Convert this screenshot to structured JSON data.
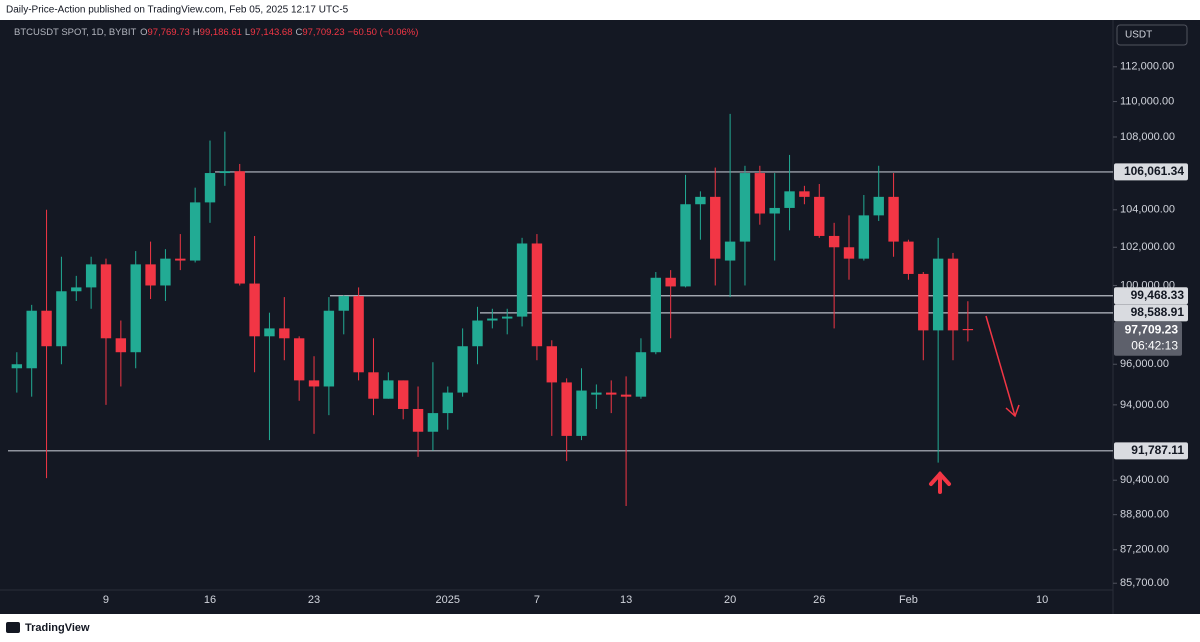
{
  "header": {
    "publisher": "Daily-Price-Action published on TradingView.com, Feb 05, 2025 12:17 UTC-5",
    "symbol": "BTCUSDT SPOT, 1D, BYBIT",
    "ohlc": [
      {
        "key": "O",
        "value": "97,769.73"
      },
      {
        "key": "H",
        "value": "99,186.61"
      },
      {
        "key": "L",
        "value": "97,143.68"
      },
      {
        "key": "C",
        "value": "97,709.23"
      }
    ],
    "change": "−60.50 (−0.06%)",
    "currency": "USDT"
  },
  "footer": {
    "brand": "TradingView"
  },
  "chart_data": {
    "type": "candlestick",
    "log_scale": true,
    "grid": false,
    "up_color": "#22ab94",
    "down_color": "#f23645",
    "categories": [
      null,
      null,
      null,
      null,
      null,
      null,
      "9",
      null,
      null,
      null,
      null,
      null,
      null,
      "16",
      null,
      null,
      null,
      null,
      null,
      null,
      "23",
      null,
      null,
      null,
      null,
      null,
      null,
      null,
      null,
      "2025",
      null,
      null,
      null,
      null,
      null,
      "7",
      null,
      null,
      null,
      null,
      null,
      "13",
      null,
      null,
      null,
      null,
      null,
      null,
      "20",
      null,
      null,
      null,
      null,
      null,
      "26",
      null,
      null,
      null,
      null,
      null,
      "Feb",
      null,
      null,
      null,
      null,
      null,
      null,
      null,
      null,
      "10",
      null,
      null,
      null,
      null
    ],
    "open": [
      95800,
      95800,
      98700,
      96900,
      99700,
      99900,
      101100,
      97300,
      96600,
      101100,
      100000,
      101400,
      101300,
      104400,
      106000,
      106100,
      100100,
      97400,
      97800,
      97300,
      95200,
      94900,
      98700,
      99450,
      95600,
      94300,
      95200,
      93800,
      92700,
      93600,
      94600,
      96900,
      98200,
      98300,
      98400,
      102200,
      96900,
      95100,
      92500,
      94500,
      94600,
      94500,
      94400,
      96600,
      100400,
      99950,
      104300,
      104700,
      101300,
      102300,
      106000,
      103800,
      104100,
      105000,
      104700,
      102600,
      102000,
      101400,
      103700,
      104700,
      102300,
      100600,
      97700,
      101400,
      97769.73,
      null,
      null,
      null,
      null,
      null,
      null,
      null,
      null,
      null
    ],
    "high": [
      96600,
      99000,
      104000,
      101500,
      100500,
      101500,
      101400,
      98200,
      101800,
      102300,
      101900,
      102700,
      105200,
      107800,
      108300,
      106500,
      102600,
      98600,
      99400,
      97400,
      96400,
      99400,
      99500,
      99900,
      97300,
      95600,
      95200,
      94900,
      96100,
      94900,
      97800,
      98900,
      98800,
      98800,
      102500,
      102700,
      97200,
      95300,
      95800,
      95000,
      95200,
      95400,
      97300,
      100700,
      100800,
      105900,
      105000,
      106300,
      109300,
      106400,
      106400,
      106000,
      107000,
      105300,
      105400,
      103300,
      103700,
      104800,
      106400,
      106000,
      102400,
      100700,
      102500,
      101700,
      99186.61,
      null,
      null,
      null,
      null,
      null,
      null,
      null,
      null,
      null
    ],
    "low": [
      94600,
      94400,
      90500,
      96000,
      99200,
      98800,
      94000,
      94900,
      95800,
      99300,
      99200,
      100800,
      101200,
      103300,
      105300,
      100000,
      95600,
      92300,
      96200,
      94200,
      92600,
      93500,
      97500,
      95200,
      93500,
      94300,
      93300,
      91500,
      91800,
      92800,
      94400,
      96000,
      97800,
      97500,
      97900,
      96200,
      92500,
      91300,
      92300,
      93800,
      93600,
      89200,
      94300,
      96500,
      97300,
      99900,
      102400,
      100000,
      99400,
      100000,
      103200,
      101300,
      102900,
      104300,
      102500,
      97800,
      100300,
      101300,
      103400,
      101500,
      100300,
      96200,
      91230,
      96200,
      97143.68,
      null,
      null,
      null,
      null,
      null,
      null,
      null,
      null,
      null
    ],
    "close": [
      96000,
      98700,
      96900,
      99700,
      99900,
      101100,
      97300,
      96600,
      101100,
      100000,
      101400,
      101300,
      104400,
      106000,
      106100,
      100100,
      97400,
      97800,
      97300,
      95200,
      94900,
      98700,
      99450,
      95600,
      94300,
      95200,
      93800,
      92700,
      93600,
      94600,
      96900,
      98200,
      98300,
      98400,
      102200,
      96900,
      95100,
      92500,
      94700,
      94600,
      94500,
      94400,
      96600,
      100400,
      99950,
      104300,
      104700,
      101400,
      102300,
      106000,
      103800,
      104100,
      105000,
      104700,
      102600,
      102000,
      101400,
      103700,
      104700,
      102300,
      100600,
      97700,
      101400,
      97700,
      97709.23,
      null,
      null,
      null,
      null,
      null,
      null,
      null,
      null,
      null
    ],
    "ylim": [
      85400,
      114750
    ],
    "yticks": [
      {
        "value": 85700,
        "label": "85,700.00"
      },
      {
        "value": 87200,
        "label": "87,200.00"
      },
      {
        "value": 88800,
        "label": "88,800.00"
      },
      {
        "value": 90400,
        "label": "90,400.00"
      },
      {
        "value": 94000,
        "label": "94,000.00"
      },
      {
        "value": 96000,
        "label": "96,000.00"
      },
      {
        "value": 100000,
        "label": "100,000.00"
      },
      {
        "value": 102000,
        "label": "102,000.00"
      },
      {
        "value": 104000,
        "label": "104,000.00"
      },
      {
        "value": 108000,
        "label": "108,000.00"
      },
      {
        "value": 110000,
        "label": "110,000.00"
      },
      {
        "value": 112000,
        "label": "112,000.00"
      }
    ],
    "levels": [
      {
        "value": 106061.34,
        "label": "106,061.34"
      },
      {
        "value": 99468.33,
        "label": "99,468.33"
      },
      {
        "value": 98588.91,
        "label": "98,588.91"
      },
      {
        "value": 91787.11,
        "label": "91,787.11"
      }
    ],
    "last_price": {
      "value": 97709.23,
      "label": "97,709.23",
      "countdown": "06:42:13"
    }
  }
}
